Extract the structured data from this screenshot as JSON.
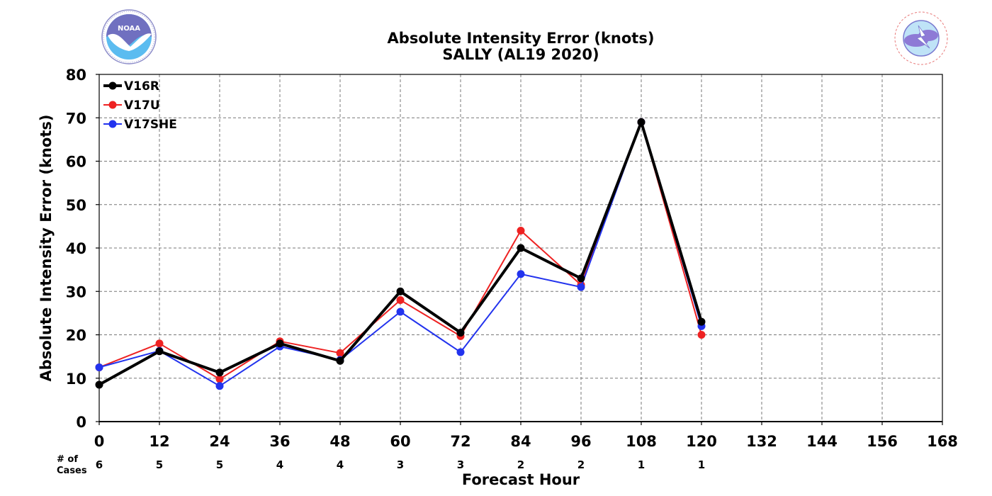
{
  "header": {
    "title_line1": "Absolute Intensity Error (knots)",
    "title_line2": "SALLY (AL19 2020)"
  },
  "logos": {
    "left": {
      "name": "noaa-logo",
      "text": "NOAA",
      "ring_text": "NATIONAL OCEANIC AND ATMOSPHERIC ADMINISTRATION - U.S. DEPARTMENT OF COMMERCE"
    },
    "right": {
      "name": "nws-logo",
      "ring_text": "NATIONAL WEATHER SERVICE"
    }
  },
  "chart_data": {
    "type": "line",
    "title": "Absolute Intensity Error (knots)",
    "subtitle": "SALLY (AL19 2020)",
    "xlabel": "Forecast Hour",
    "ylabel": "Absolute Intensity Error (knots)",
    "xlim": [
      0,
      168
    ],
    "ylim": [
      0,
      80
    ],
    "x_ticks": [
      0,
      12,
      24,
      36,
      48,
      60,
      72,
      84,
      96,
      108,
      120,
      132,
      144,
      156,
      168
    ],
    "y_ticks": [
      0,
      10,
      20,
      30,
      40,
      50,
      60,
      70,
      80
    ],
    "grid": true,
    "legend_position": "top-left",
    "cases_label": "# of\nCases",
    "cases": [
      {
        "x": 0,
        "n": 6
      },
      {
        "x": 12,
        "n": 5
      },
      {
        "x": 24,
        "n": 5
      },
      {
        "x": 36,
        "n": 4
      },
      {
        "x": 48,
        "n": 4
      },
      {
        "x": 60,
        "n": 3
      },
      {
        "x": 72,
        "n": 3
      },
      {
        "x": 84,
        "n": 2
      },
      {
        "x": 96,
        "n": 2
      },
      {
        "x": 108,
        "n": 1
      },
      {
        "x": 120,
        "n": 1
      }
    ],
    "x": [
      0,
      12,
      24,
      36,
      48,
      60,
      72,
      84,
      96,
      108,
      120
    ],
    "series": [
      {
        "name": "V17U",
        "color": "#ee2222",
        "line_width": 2,
        "values": [
          12.5,
          18.0,
          9.8,
          18.5,
          15.8,
          28.0,
          19.7,
          44.0,
          31.5,
          69.0,
          20.0
        ]
      },
      {
        "name": "V17SHE",
        "color": "#2233ee",
        "line_width": 2,
        "values": [
          12.5,
          16.3,
          8.2,
          17.3,
          14.2,
          25.3,
          16.0,
          34.0,
          31.0,
          69.0,
          22.0
        ]
      },
      {
        "name": "V16R",
        "color": "#000000",
        "line_width": 4,
        "values": [
          8.5,
          16.2,
          11.3,
          18.0,
          14.0,
          30.0,
          20.5,
          40.0,
          33.0,
          69.0,
          23.0
        ]
      }
    ],
    "legend_order": [
      "V16R",
      "V17U",
      "V17SHE"
    ]
  }
}
